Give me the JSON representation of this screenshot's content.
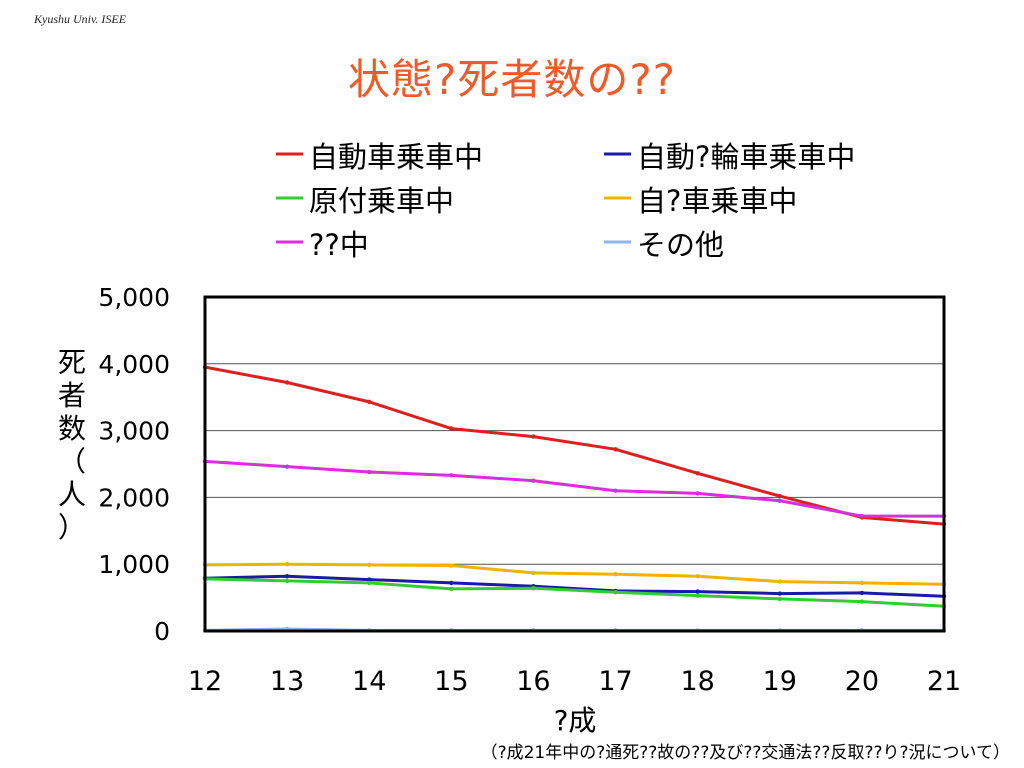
{
  "header": {
    "tag": "Kyushu Univ. ISEE",
    "title": "状態?死者数の??"
  },
  "source_note": "（?成21年中の?通死??故の??及び??交通法??反取??り?況について）",
  "chart_data": {
    "type": "line",
    "title": "状態?死者数の??",
    "xlabel": "?成",
    "ylabel": "死者数（人）",
    "categories": [
      "12",
      "13",
      "14",
      "15",
      "16",
      "17",
      "18",
      "19",
      "20",
      "21"
    ],
    "ylim": [
      0,
      5000
    ],
    "yticks": [
      0,
      1000,
      2000,
      3000,
      4000,
      5000
    ],
    "ytick_labels": [
      "0",
      "1,000",
      "2,000",
      "3,000",
      "4,000",
      "5,000"
    ],
    "grid": true,
    "legend_position": "top",
    "series": [
      {
        "name": "自動車乗車中",
        "color": "#dd1f1f",
        "values": [
          3950,
          3720,
          3430,
          3030,
          2910,
          2720,
          2360,
          2020,
          1700,
          1600
        ]
      },
      {
        "name": "自動?輪車乗車中",
        "color": "#1a1aa8",
        "values": [
          790,
          820,
          770,
          720,
          670,
          600,
          590,
          560,
          570,
          520
        ]
      },
      {
        "name": "原付乗車中",
        "color": "#33cc33",
        "values": [
          780,
          750,
          720,
          630,
          640,
          580,
          530,
          480,
          440,
          370
        ]
      },
      {
        "name": "自?車乗車中",
        "color": "#f0b400",
        "values": [
          990,
          1000,
          990,
          980,
          870,
          850,
          820,
          740,
          720,
          700
        ]
      },
      {
        "name": "??中",
        "color": "#d82fd8",
        "values": [
          2540,
          2460,
          2380,
          2330,
          2250,
          2100,
          2060,
          1950,
          1720,
          1720
        ]
      },
      {
        "name": "その他",
        "color": "#8fb6ea",
        "values": [
          10,
          30,
          10,
          10,
          10,
          10,
          10,
          10,
          10,
          10
        ]
      }
    ]
  }
}
